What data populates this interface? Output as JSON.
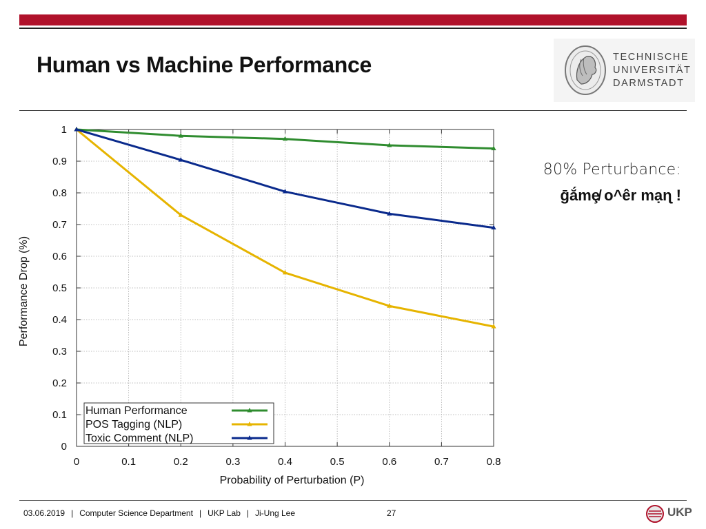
{
  "slide": {
    "title": "Human vs Machine Performance"
  },
  "logo": {
    "lines": [
      "TECHNISCHE",
      "UNIVERSITÄT",
      "DARMSTADT"
    ]
  },
  "side_note": {
    "line1": "80% Perturbance:",
    "line2": "ḡắmȩ̸ o^êr mạɳ !"
  },
  "footer": {
    "date": "03.06.2019",
    "department": "Computer Science Department",
    "lab": "UKP Lab",
    "author": "Ji-Ung Lee",
    "page": "27",
    "separator": "|",
    "ukp_label": "UKP"
  },
  "colors": {
    "accent": "#b0122b",
    "human": "#2f8c2f",
    "pos": "#e6b400",
    "toxic": "#0a2a8c"
  },
  "chart_data": {
    "type": "line",
    "title": "",
    "xlabel": "Probability of Perturbation (P)",
    "ylabel": "Performance Drop (%)",
    "xlim": [
      0,
      0.8
    ],
    "ylim": [
      0,
      1
    ],
    "grid": true,
    "legend_position": "bottom-left",
    "x_ticks": [
      "0",
      "0.1",
      "0.2",
      "0.3",
      "0.4",
      "0.5",
      "0.6",
      "0.7",
      "0.8"
    ],
    "y_ticks": [
      "0",
      "0.1",
      "0.2",
      "0.3",
      "0.4",
      "0.5",
      "0.6",
      "0.7",
      "0.8",
      "0.9",
      "1"
    ],
    "x": [
      0,
      0.2,
      0.4,
      0.6,
      0.8
    ],
    "series": [
      {
        "name": "Human Performance",
        "color": "#2f8c2f",
        "values": [
          1.0,
          0.98,
          0.97,
          0.95,
          0.94
        ]
      },
      {
        "name": "POS Tagging (NLP)",
        "color": "#e6b400",
        "values": [
          1.0,
          0.73,
          0.548,
          0.443,
          0.378
        ]
      },
      {
        "name": "Toxic Comment (NLP)",
        "color": "#0a2a8c",
        "values": [
          1.0,
          0.904,
          0.804,
          0.734,
          0.69
        ]
      }
    ]
  }
}
